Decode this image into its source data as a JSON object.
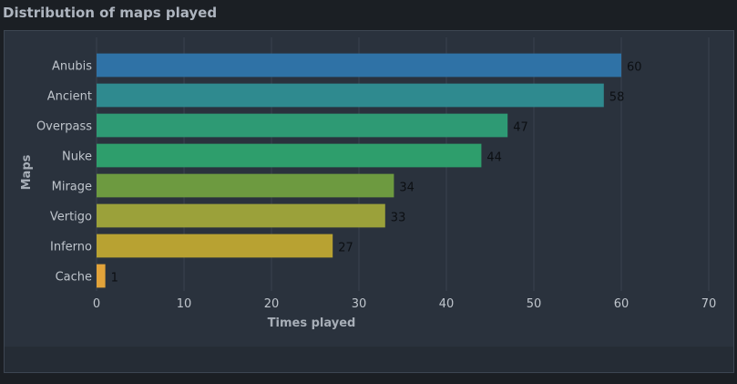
{
  "page": {
    "title": "Distribution of maps played"
  },
  "chart_data": {
    "type": "bar",
    "orientation": "horizontal",
    "title": "Distribution of maps played",
    "xlabel": "Times played",
    "ylabel": "Maps",
    "categories": [
      "Anubis",
      "Ancient",
      "Overpass",
      "Nuke",
      "Mirage",
      "Vertigo",
      "Inferno",
      "Cache"
    ],
    "values": [
      60,
      58,
      47,
      44,
      34,
      33,
      27,
      1
    ],
    "colors": [
      "#2f72a6",
      "#2f8a8f",
      "#2e9a74",
      "#2e9e6c",
      "#6d9a40",
      "#9ba13a",
      "#b8a232",
      "#e2a33a"
    ],
    "xlim": [
      0,
      70
    ],
    "xticks": [
      "0",
      "10",
      "20",
      "30",
      "40",
      "50",
      "60",
      "70"
    ],
    "data_labels": [
      "60",
      "58",
      "47",
      "44",
      "34",
      "33",
      "27",
      "1"
    ],
    "grid": true,
    "legend": "none"
  }
}
